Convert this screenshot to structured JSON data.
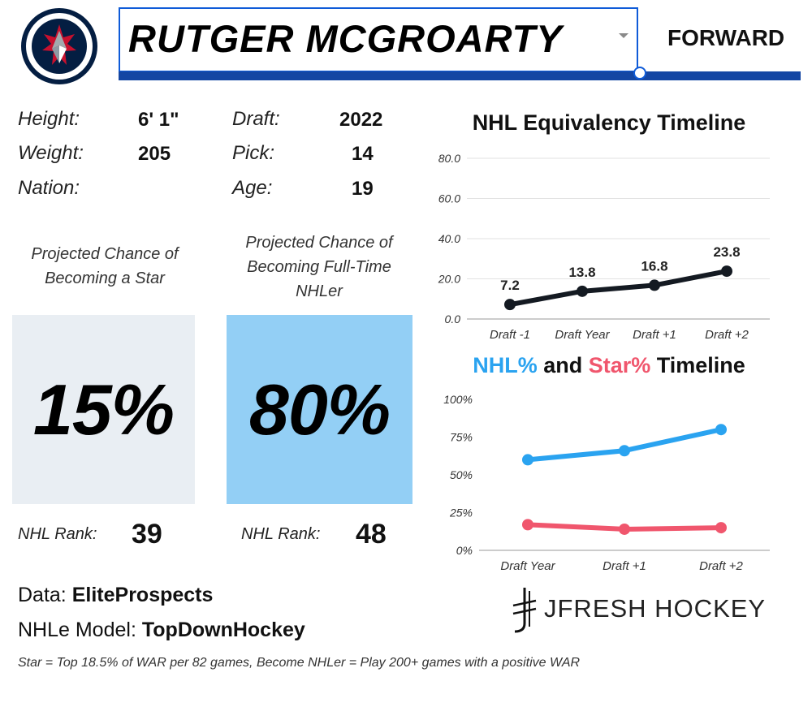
{
  "header": {
    "player_name": "RUTGER MCGROARTY",
    "position": "FORWARD",
    "logo_icon": "jets-logo-icon"
  },
  "bio": {
    "height_label": "Height:",
    "height_value": "6' 1\"",
    "weight_label": "Weight:",
    "weight_value": "205",
    "nation_label": "Nation:",
    "nation_value": "",
    "draft_label": "Draft:",
    "draft_value": "2022",
    "pick_label": "Pick:",
    "pick_value": "14",
    "age_label": "Age:",
    "age_value": "19"
  },
  "star_card": {
    "title_line1": "Projected Chance of",
    "title_line2": "Becoming a Star",
    "value": "15%",
    "rank_label": "NHL Rank:",
    "rank_value": "39",
    "box_color": "#e9eef3"
  },
  "nhl_card": {
    "title_line1": "Projected Chance of",
    "title_line2": "Becoming Full-Time",
    "title_line3": "NHLer",
    "value": "80%",
    "rank_label": "NHL Rank:",
    "rank_value": "48",
    "box_color": "#93cff5"
  },
  "sources": {
    "data_label": "Data:",
    "data_value": "EliteProspects",
    "model_label": "NHLe Model:",
    "model_value": "TopDownHockey"
  },
  "footnote": "Star = Top 18.5% of WAR per 82 games, Become NHLer = Play 200+ games with a positive WAR",
  "brand": {
    "text": "JFRESH HOCKEY",
    "icon": "jfresh-logo-icon"
  },
  "chart_data": [
    {
      "type": "line",
      "title": "NHL Equivalency Timeline",
      "categories": [
        "Draft -1",
        "Draft Year",
        "Draft +1",
        "Draft +2"
      ],
      "series": [
        {
          "values": [
            7.2,
            13.8,
            16.8,
            23.8
          ],
          "color": "#141a22"
        }
      ],
      "data_labels": [
        "7.2",
        "13.8",
        "16.8",
        "23.8"
      ],
      "ylim": [
        0,
        80
      ],
      "yticks": [
        "0.0",
        "20.0",
        "40.0",
        "60.0",
        "80.0"
      ],
      "grid": true
    },
    {
      "type": "line",
      "title_parts": [
        {
          "text": "NHL%",
          "color": "#2aa3f0"
        },
        {
          "text": " and ",
          "color": "#111111"
        },
        {
          "text": "Star%",
          "color": "#f0566d"
        },
        {
          "text": " Timeline",
          "color": "#111111"
        }
      ],
      "categories": [
        "Draft Year",
        "Draft +1",
        "Draft +2"
      ],
      "series": [
        {
          "values": [
            60,
            66,
            80
          ],
          "color": "#2aa3f0"
        },
        {
          "values": [
            17,
            14,
            15
          ],
          "color": "#f0566d"
        }
      ],
      "ylim": [
        0,
        100
      ],
      "yticks": [
        "0%",
        "25%",
        "50%",
        "75%",
        "100%"
      ],
      "grid": false
    }
  ]
}
